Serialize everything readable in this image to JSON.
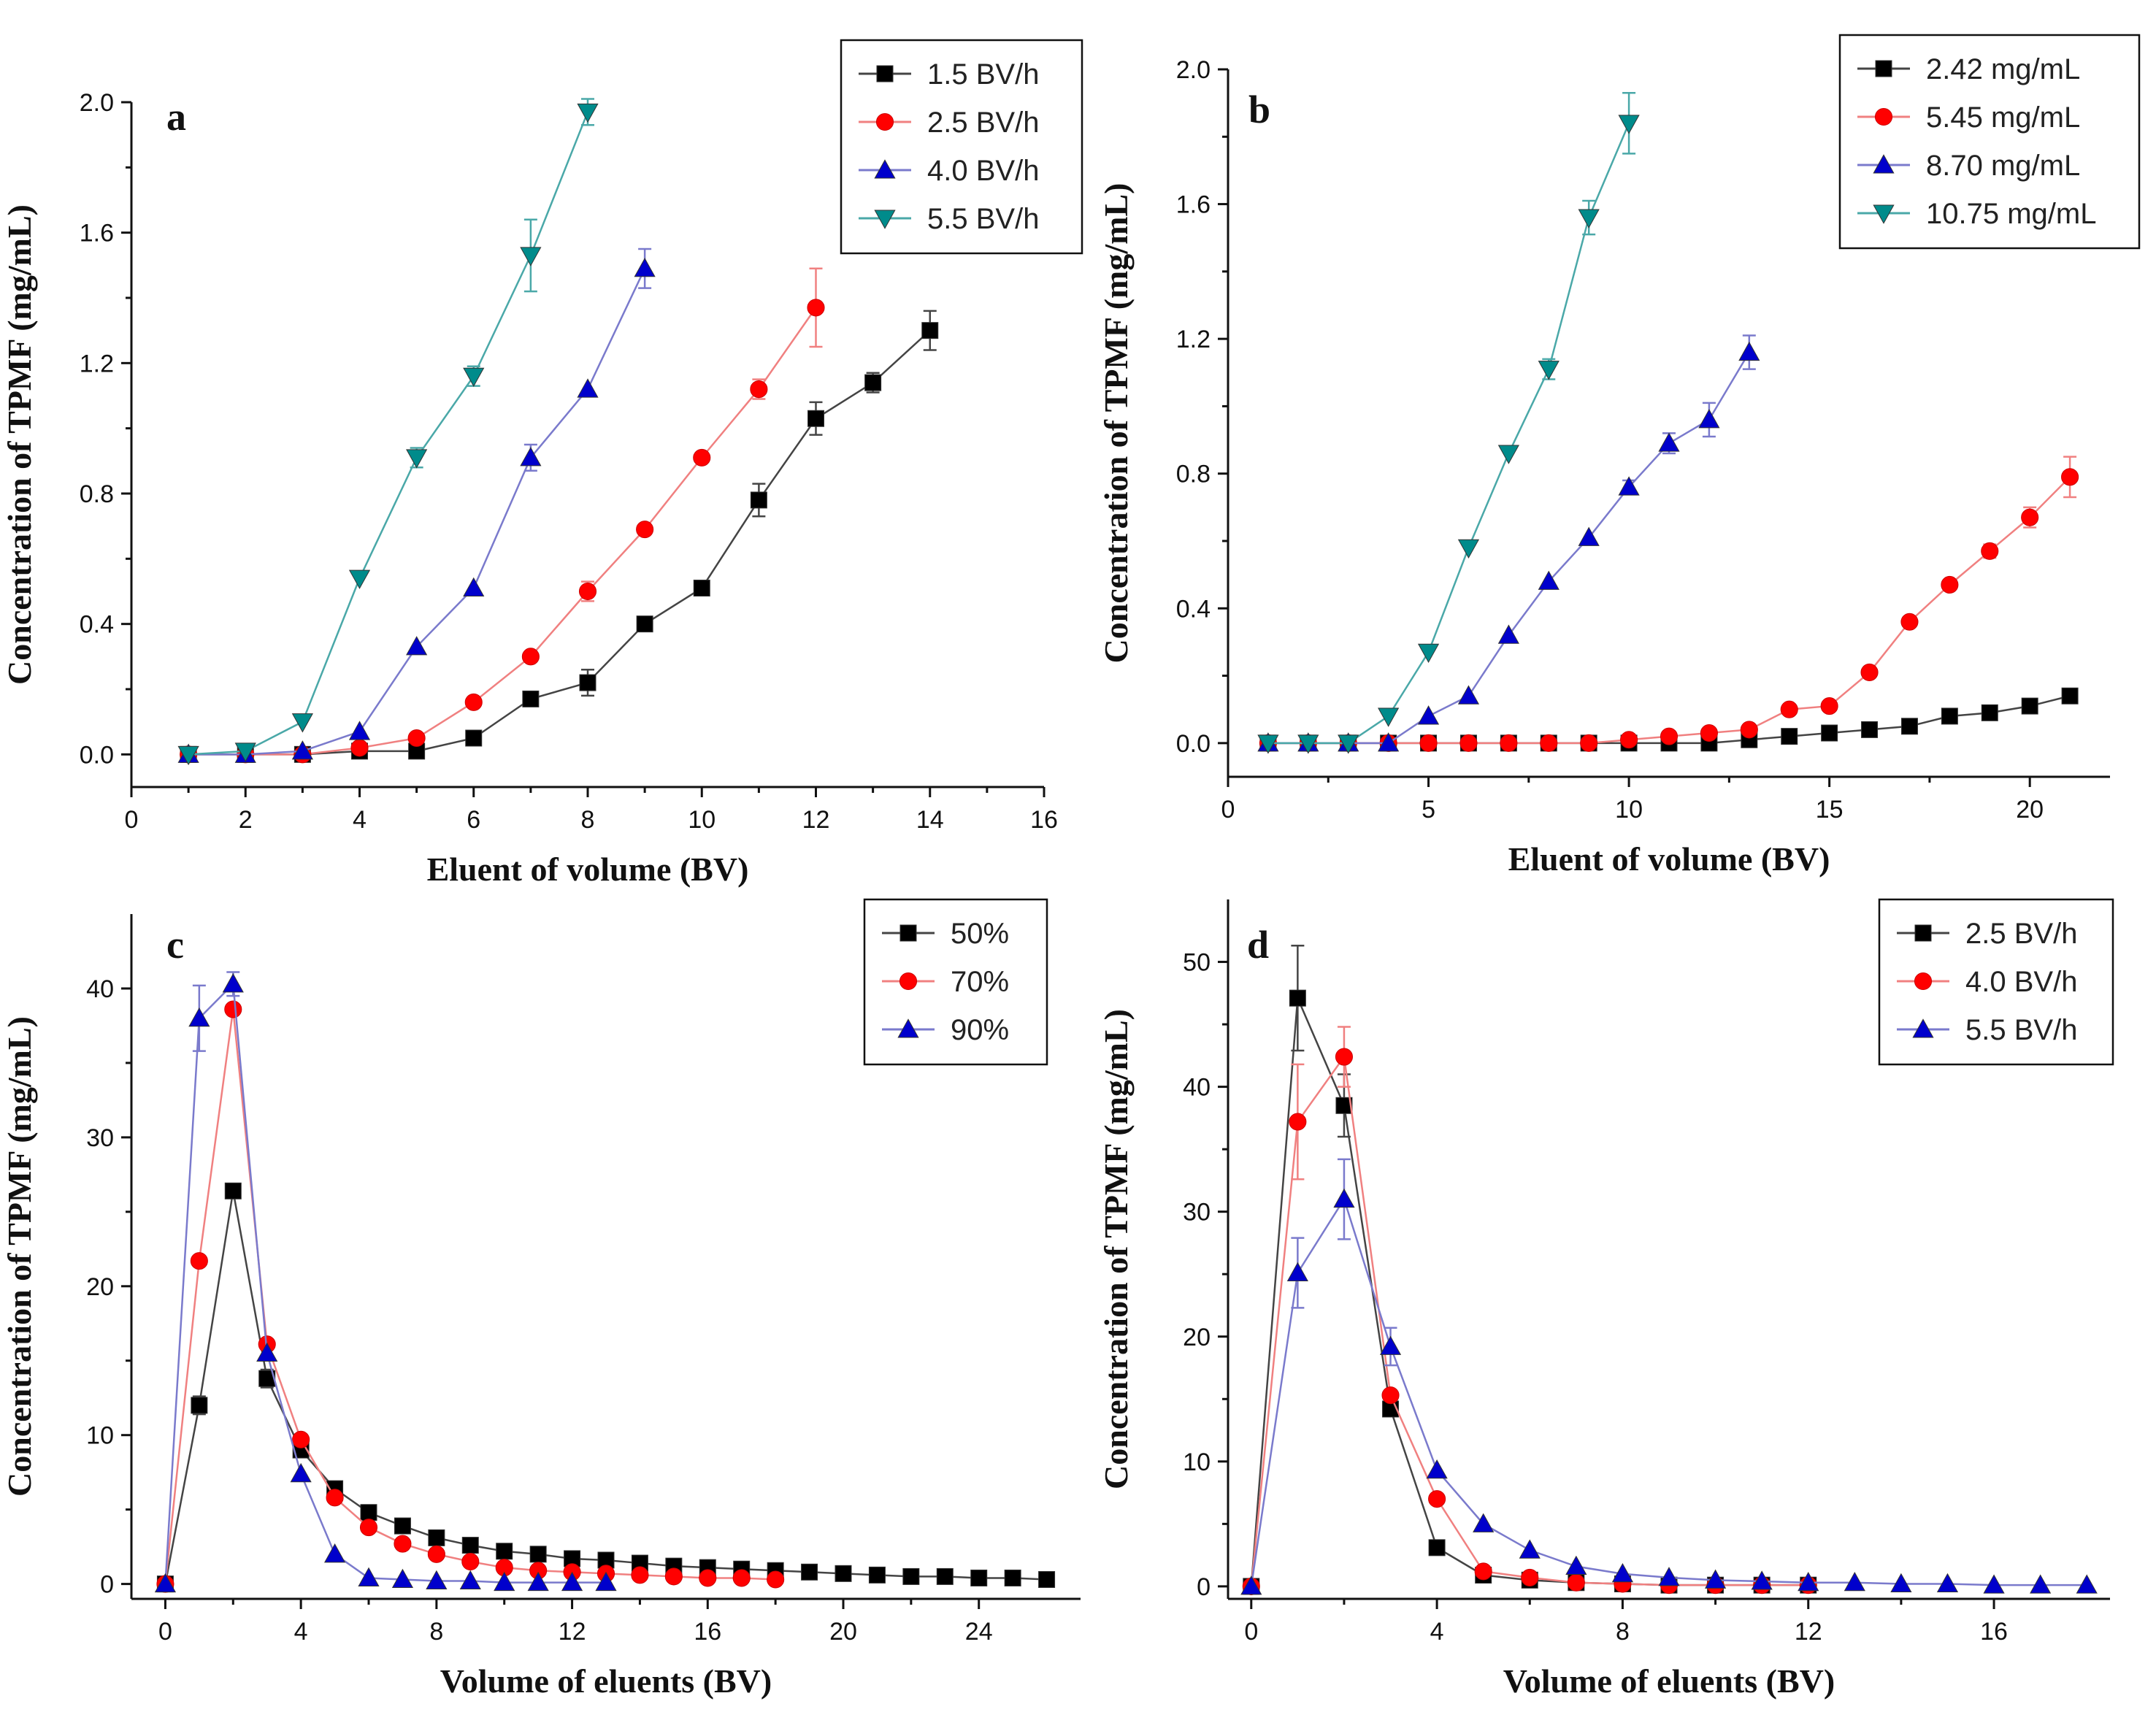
{
  "chart_data": [
    {
      "id": "a",
      "type": "line",
      "panel_label": "a",
      "xlabel": "Eluent of volume (BV)",
      "ylabel": "Concentration of  TPMF (mg/mL)",
      "xlim": [
        0,
        16
      ],
      "ylim": [
        -0.1,
        2.0
      ],
      "xticks": [
        0,
        2,
        4,
        6,
        8,
        10,
        12,
        14,
        16
      ],
      "yticks": [
        0.0,
        0.4,
        0.8,
        1.2,
        1.6,
        2.0
      ],
      "ytick_labels": [
        "0.0",
        "0.4",
        "0.8",
        "1.2",
        "1.6",
        "2.0"
      ],
      "legend_position": "top-right",
      "series": [
        {
          "name": "1.5 BV/h",
          "color": "#000000",
          "marker": "square",
          "x": [
            1,
            2,
            3,
            4,
            5,
            6,
            7,
            8,
            9,
            10,
            11,
            12,
            13,
            14
          ],
          "y": [
            0.0,
            0.0,
            0.0,
            0.01,
            0.01,
            0.05,
            0.17,
            0.22,
            0.4,
            0.51,
            0.78,
            1.03,
            1.14,
            1.3
          ],
          "err": [
            0,
            0,
            0,
            0,
            0,
            0,
            0.02,
            0.04,
            0,
            0,
            0.05,
            0.05,
            0.03,
            0.06
          ]
        },
        {
          "name": "2.5 BV/h",
          "color": "#ff0000",
          "marker": "circle",
          "x": [
            1,
            2,
            3,
            4,
            5,
            6,
            7,
            8,
            9,
            10,
            11,
            12
          ],
          "y": [
            0.0,
            0.0,
            0.0,
            0.02,
            0.05,
            0.16,
            0.3,
            0.5,
            0.69,
            0.91,
            1.12,
            1.37
          ],
          "err": [
            0,
            0,
            0,
            0,
            0,
            0,
            0,
            0.03,
            0,
            0,
            0.03,
            0.12
          ]
        },
        {
          "name": "4.0 BV/h",
          "color": "#0000cc",
          "marker": "triangle-up",
          "x": [
            1,
            2,
            3,
            4,
            5,
            6,
            7,
            8,
            9
          ],
          "y": [
            0.0,
            0.0,
            0.01,
            0.07,
            0.33,
            0.51,
            0.91,
            1.12,
            1.49
          ],
          "err": [
            0,
            0,
            0,
            0,
            0,
            0,
            0.04,
            0,
            0.06
          ]
        },
        {
          "name": "5.5 BV/h",
          "color": "#008b8b",
          "marker": "triangle-down",
          "x": [
            1,
            2,
            3,
            4,
            5,
            6,
            7,
            8
          ],
          "y": [
            0.0,
            0.01,
            0.1,
            0.54,
            0.91,
            1.16,
            1.53,
            1.97
          ],
          "err": [
            0,
            0,
            0,
            0,
            0.03,
            0.03,
            0.11,
            0.04
          ]
        }
      ]
    },
    {
      "id": "b",
      "type": "line",
      "panel_label": "b",
      "xlabel": "Eluent of volume (BV)",
      "ylabel": "Concentration of  TPMF (mg/mL)",
      "xlim": [
        0,
        22
      ],
      "ylim": [
        -0.1,
        2.0
      ],
      "xticks": [
        0,
        5,
        10,
        15,
        20
      ],
      "yticks": [
        0.0,
        0.4,
        0.8,
        1.2,
        1.6,
        2.0
      ],
      "ytick_labels": [
        "0.0",
        "0.4",
        "0.8",
        "1.2",
        "1.6",
        "2.0"
      ],
      "legend_position": "top-right",
      "series": [
        {
          "name": "2.42 mg/mL",
          "color": "#000000",
          "marker": "square",
          "x": [
            1,
            2,
            3,
            4,
            5,
            6,
            7,
            8,
            9,
            10,
            11,
            12,
            13,
            14,
            15,
            16,
            17,
            18,
            19,
            20,
            21
          ],
          "y": [
            0.0,
            0.0,
            0.0,
            0.0,
            0.0,
            0.0,
            0.0,
            0.0,
            0.0,
            0.0,
            0.0,
            0.0,
            0.01,
            0.02,
            0.03,
            0.04,
            0.05,
            0.08,
            0.09,
            0.11,
            0.14
          ],
          "err": [
            0,
            0,
            0,
            0,
            0,
            0,
            0,
            0,
            0,
            0,
            0,
            0,
            0,
            0,
            0,
            0,
            0,
            0,
            0,
            0,
            0
          ]
        },
        {
          "name": "5.45 mg/mL",
          "color": "#ff0000",
          "marker": "circle",
          "x": [
            1,
            2,
            3,
            4,
            5,
            6,
            7,
            8,
            9,
            10,
            11,
            12,
            13,
            14,
            15,
            16,
            17,
            18,
            19,
            20,
            21
          ],
          "y": [
            0.0,
            0.0,
            0.0,
            0.0,
            0.0,
            0.0,
            0.0,
            0.0,
            0.0,
            0.01,
            0.02,
            0.03,
            0.04,
            0.1,
            0.11,
            0.21,
            0.36,
            0.47,
            0.57,
            0.67,
            0.79
          ],
          "err": [
            0,
            0,
            0,
            0,
            0,
            0,
            0,
            0,
            0,
            0,
            0,
            0,
            0,
            0,
            0,
            0,
            0,
            0,
            0.02,
            0.03,
            0.06
          ]
        },
        {
          "name": "8.70 mg/mL",
          "color": "#0000cc",
          "marker": "triangle-up",
          "x": [
            1,
            2,
            3,
            4,
            5,
            6,
            7,
            8,
            9,
            10,
            11,
            12,
            13
          ],
          "y": [
            0.0,
            0.0,
            0.0,
            0.0,
            0.08,
            0.14,
            0.32,
            0.48,
            0.61,
            0.76,
            0.89,
            0.96,
            1.16
          ],
          "err": [
            0,
            0,
            0,
            0,
            0,
            0,
            0,
            0,
            0,
            0.02,
            0.03,
            0.05,
            0.05
          ]
        },
        {
          "name": "10.75 mg/mL",
          "color": "#008b8b",
          "marker": "triangle-down",
          "x": [
            1,
            2,
            3,
            4,
            5,
            6,
            7,
            8,
            9,
            10
          ],
          "y": [
            0.0,
            0.0,
            0.0,
            0.08,
            0.27,
            0.58,
            0.86,
            1.11,
            1.56,
            1.84
          ],
          "err": [
            0,
            0,
            0,
            0,
            0,
            0,
            0,
            0.03,
            0.05,
            0.09
          ]
        }
      ]
    },
    {
      "id": "c",
      "type": "line",
      "panel_label": "c",
      "xlabel": "Volume of eluents (BV)",
      "ylabel": "Concentration of  TPMF (mg/mL)",
      "xlim": [
        -1,
        27
      ],
      "ylim": [
        -1,
        45
      ],
      "xticks": [
        0,
        4,
        8,
        12,
        16,
        20,
        24
      ],
      "yticks": [
        0,
        10,
        20,
        30,
        40
      ],
      "ytick_labels": [
        "0",
        "10",
        "20",
        "30",
        "40"
      ],
      "legend_position": "top-right",
      "series": [
        {
          "name": "50%",
          "color": "#000000",
          "marker": "square",
          "x": [
            0,
            1,
            2,
            3,
            4,
            5,
            6,
            7,
            8,
            9,
            10,
            11,
            12,
            13,
            14,
            15,
            16,
            17,
            18,
            19,
            20,
            21,
            22,
            23,
            24,
            25,
            26
          ],
          "y": [
            0,
            12.0,
            26.4,
            13.8,
            9.0,
            6.4,
            4.8,
            3.9,
            3.1,
            2.6,
            2.2,
            2.0,
            1.7,
            1.6,
            1.4,
            1.2,
            1.1,
            1.0,
            0.9,
            0.8,
            0.7,
            0.6,
            0.5,
            0.5,
            0.4,
            0.4,
            0.3
          ],
          "err": [
            0,
            0.6,
            0,
            0.6,
            0,
            0,
            0,
            0,
            0,
            0,
            0,
            0,
            0,
            0,
            0,
            0,
            0,
            0,
            0,
            0,
            0,
            0,
            0,
            0,
            0,
            0,
            0
          ]
        },
        {
          "name": "70%",
          "color": "#ff0000",
          "marker": "circle",
          "x": [
            0,
            1,
            2,
            3,
            4,
            5,
            6,
            7,
            8,
            9,
            10,
            11,
            12,
            13,
            14,
            15,
            16,
            17,
            18
          ],
          "y": [
            0,
            21.7,
            38.6,
            16.1,
            9.7,
            5.8,
            3.8,
            2.7,
            2.0,
            1.5,
            1.1,
            0.9,
            0.8,
            0.7,
            0.6,
            0.5,
            0.4,
            0.4,
            0.3
          ],
          "err": [
            0,
            0,
            0,
            0,
            0,
            0,
            0,
            0,
            0,
            0,
            0,
            0,
            0,
            0,
            0,
            0,
            0,
            0,
            0
          ]
        },
        {
          "name": "90%",
          "color": "#0000cc",
          "marker": "triangle-up",
          "x": [
            0,
            1,
            2,
            3,
            4,
            5,
            6,
            7,
            8,
            9,
            10,
            11,
            12,
            13
          ],
          "y": [
            0,
            38.0,
            40.3,
            15.5,
            7.4,
            2.0,
            0.4,
            0.3,
            0.2,
            0.2,
            0.1,
            0.1,
            0.1,
            0.1
          ],
          "err": [
            0,
            2.2,
            0.8,
            0,
            0,
            0,
            0,
            0,
            0,
            0,
            0,
            0,
            0,
            0
          ]
        }
      ]
    },
    {
      "id": "d",
      "type": "line",
      "panel_label": "d",
      "xlabel": "Volume of eluents (BV)",
      "ylabel": "Concentration of  TPMF (mg/mL)",
      "xlim": [
        -0.5,
        18.5
      ],
      "ylim": [
        -1,
        55
      ],
      "xticks": [
        0,
        4,
        8,
        12,
        16
      ],
      "yticks": [
        0,
        10,
        20,
        30,
        40,
        50
      ],
      "ytick_labels": [
        "0",
        "10",
        "20",
        "30",
        "40",
        "50"
      ],
      "legend_position": "top-right",
      "series": [
        {
          "name": "2.5 BV/h",
          "color": "#000000",
          "marker": "square",
          "x": [
            0,
            1,
            2,
            3,
            4,
            5,
            6,
            7,
            8,
            9,
            10,
            11,
            12
          ],
          "y": [
            0,
            47.1,
            38.5,
            14.2,
            3.1,
            0.9,
            0.5,
            0.3,
            0.2,
            0.1,
            0.1,
            0.1,
            0.1
          ],
          "err": [
            0,
            4.2,
            2.5,
            0,
            0,
            0,
            0,
            0,
            0,
            0,
            0,
            0,
            0
          ]
        },
        {
          "name": "4.0 BV/h",
          "color": "#ff0000",
          "marker": "circle",
          "x": [
            0,
            1,
            2,
            3,
            4,
            5,
            6,
            7,
            8,
            9,
            10,
            11,
            12
          ],
          "y": [
            0,
            37.2,
            42.4,
            15.3,
            7.0,
            1.2,
            0.7,
            0.3,
            0.2,
            0.1,
            0.1,
            0.1,
            0.1
          ],
          "err": [
            0,
            4.6,
            2.4,
            0,
            0,
            0,
            0,
            0,
            0,
            0,
            0,
            0,
            0
          ]
        },
        {
          "name": "5.5 BV/h",
          "color": "#0000cc",
          "marker": "triangle-up",
          "x": [
            0,
            1,
            2,
            3,
            4,
            5,
            6,
            7,
            8,
            9,
            10,
            11,
            12,
            13,
            14,
            15,
            16,
            17,
            18
          ],
          "y": [
            0,
            25.1,
            31.0,
            19.2,
            9.3,
            5.0,
            2.9,
            1.6,
            1.0,
            0.7,
            0.5,
            0.4,
            0.3,
            0.3,
            0.2,
            0.2,
            0.1,
            0.1,
            0.1
          ],
          "err": [
            0,
            2.8,
            3.2,
            1.5,
            0,
            0,
            0,
            0,
            0,
            0,
            0,
            0,
            0,
            0,
            0,
            0,
            0,
            0,
            0
          ]
        }
      ]
    }
  ]
}
